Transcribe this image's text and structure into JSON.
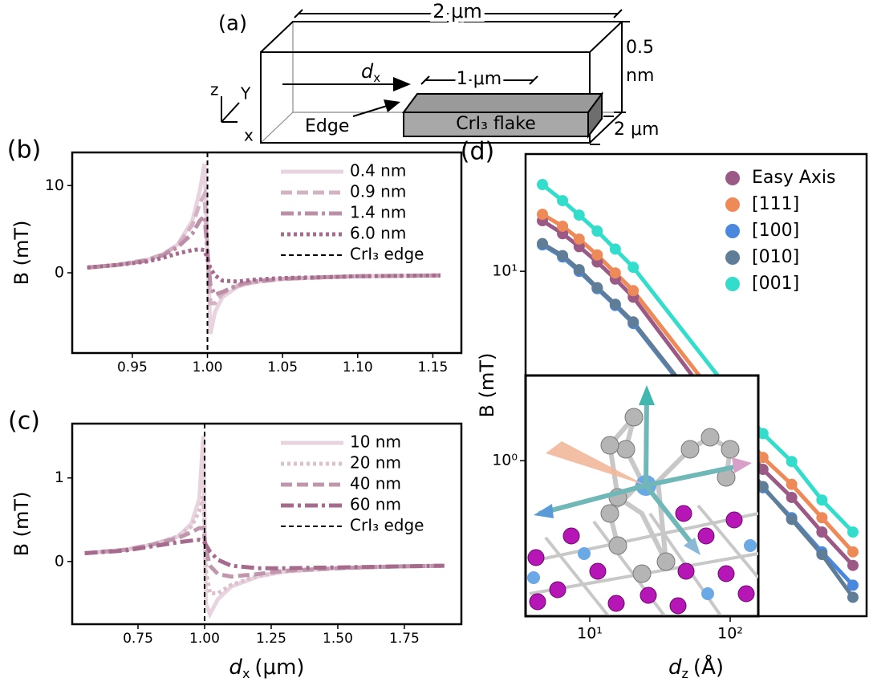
{
  "diagram": {
    "panel_label": "(a)",
    "length": "2 μm",
    "height": [
      "0.5",
      "nm"
    ],
    "dx": {
      "symbol": "d",
      "subscript": "x"
    },
    "flake_length": "1 μm",
    "edge": "Edge",
    "flake": "CrI₃ flake",
    "width": "2 μm",
    "axes": [
      "z",
      "Y",
      "x"
    ]
  },
  "chart_data": [
    {
      "type": "line",
      "panel_label": "(b)",
      "y_label": "B (mT)",
      "x": [
        0.92,
        0.94,
        0.96,
        0.97,
        0.98,
        0.99,
        0.995,
        0.998,
        1.002,
        1.005,
        1.01,
        1.02,
        1.03,
        1.05,
        1.08,
        1.1,
        1.155
      ],
      "xlim": [
        0.91,
        1.169
      ],
      "xticks": [
        0.95,
        {
          "value": 1.0,
          "label": "1.00"
        },
        1.05,
        {
          "value": 1.1,
          "label": "1.10"
        },
        1.15
      ],
      "ylim": [
        -9.2,
        13.8
      ],
      "yticks": [
        0,
        10
      ],
      "series": [
        {
          "name": "0.4 nm",
          "color": "#e8d4de",
          "dash": "solid",
          "values": [
            0.6,
            0.9,
            1.5,
            2.1,
            3.2,
            6,
            9.5,
            12.5,
            -7,
            -4.5,
            -2.8,
            -1.6,
            -1.1,
            -0.7,
            -0.5,
            -0.4,
            -0.3
          ]
        },
        {
          "name": "0.9 nm",
          "color": "#d3b3c3",
          "dash": "dashed",
          "values": [
            0.6,
            0.9,
            1.5,
            2.1,
            3.1,
            5.5,
            8,
            9,
            -3.5,
            -3.5,
            -2.4,
            -1.5,
            -1.1,
            -0.7,
            -0.5,
            -0.4,
            -0.3
          ]
        },
        {
          "name": "1.4 nm",
          "color": "#bc8ea8",
          "dash": "dashdot",
          "values": [
            0.6,
            0.9,
            1.4,
            2,
            2.9,
            4.5,
            6,
            6.5,
            -1.5,
            -2.5,
            -2.2,
            -1.4,
            -1,
            -0.7,
            -0.5,
            -0.4,
            -0.3
          ]
        },
        {
          "name": "6.0 nm",
          "color": "#a56a8c",
          "dash": "dotted",
          "values": [
            0.6,
            0.9,
            1.3,
            1.7,
            2.2,
            2.6,
            2.7,
            2.6,
            0.5,
            -0.3,
            -0.9,
            -1,
            -0.8,
            -0.6,
            -0.5,
            -0.4,
            -0.3
          ]
        }
      ],
      "vline": {
        "name": "CrI₃ edge",
        "x": 1.0,
        "color": "#000000"
      },
      "legend": "upper right"
    },
    {
      "type": "line",
      "panel_label": "(c)",
      "y_label": "B (mT)",
      "x_label": {
        "symbol": "d",
        "subscript": "x",
        "unit": "(μm)"
      },
      "x": [
        0.55,
        0.7,
        0.8,
        0.9,
        0.95,
        0.98,
        0.995,
        1.005,
        1.02,
        1.05,
        1.1,
        1.2,
        1.3,
        1.5,
        1.7,
        1.9
      ],
      "xlim": [
        0.503,
        1.964
      ],
      "xticks": [
        0.75,
        {
          "value": 1.0,
          "label": "1.00"
        },
        1.25,
        {
          "value": 1.5,
          "label": "1.50"
        },
        1.75
      ],
      "ylim": [
        -0.75,
        1.65
      ],
      "yticks": [
        0,
        1
      ],
      "series": [
        {
          "name": "10 nm",
          "color": "#e8d4de",
          "dash": "solid",
          "values": [
            0.1,
            0.14,
            0.2,
            0.3,
            0.45,
            0.75,
            1.5,
            -0.5,
            -0.63,
            -0.45,
            -0.3,
            -0.18,
            -0.12,
            -0.08,
            -0.06,
            -0.05
          ]
        },
        {
          "name": "20 nm",
          "color": "#dcc0ce",
          "dash": "dotted",
          "values": [
            0.1,
            0.14,
            0.2,
            0.3,
            0.42,
            0.6,
            0.78,
            -0.1,
            -0.38,
            -0.38,
            -0.28,
            -0.17,
            -0.12,
            -0.08,
            -0.06,
            -0.05
          ]
        },
        {
          "name": "40 nm",
          "color": "#c096ad",
          "dash": "dashed",
          "values": [
            0.1,
            0.14,
            0.2,
            0.28,
            0.35,
            0.4,
            0.4,
            0.15,
            -0.05,
            -0.15,
            -0.18,
            -0.15,
            -0.11,
            -0.08,
            -0.06,
            -0.05
          ]
        },
        {
          "name": "60 nm",
          "color": "#a56a8c",
          "dash": "dashdot",
          "values": [
            0.1,
            0.13,
            0.18,
            0.23,
            0.25,
            0.26,
            0.25,
            0.2,
            0.12,
            0.02,
            -0.05,
            -0.08,
            -0.08,
            -0.07,
            -0.06,
            -0.05
          ]
        }
      ],
      "vline": {
        "name": "CrI₃ edge",
        "x": 1.0,
        "color": "#000000"
      },
      "legend": "upper right"
    },
    {
      "type": "logline",
      "panel_label": "(d)",
      "y_label": "B (mT)",
      "x_label": {
        "symbol": "d",
        "subscript": "z",
        "unit": "(Å)"
      },
      "x": [
        4.6,
        6.4,
        8.4,
        11.3,
        15.2,
        20.4,
        171,
        274,
        450,
        748
      ],
      "xlim": [
        3.49,
        936
      ],
      "xticks": [
        {
          "value": 10,
          "label": "10¹"
        },
        {
          "value": 100,
          "label": "10²"
        }
      ],
      "ylim": [
        0.151,
        41.6
      ],
      "yticks": [
        {
          "value": 1,
          "label": "10⁰"
        },
        {
          "value": 10,
          "label": "10¹"
        }
      ],
      "series": [
        {
          "name": "Easy Axis",
          "color": "#9b5a85",
          "values": [
            18.5,
            15.8,
            13.5,
            11.2,
            9.1,
            7.3,
            0.9,
            0.64,
            0.42,
            0.28
          ]
        },
        {
          "name": "[111]",
          "color": "#ee8a58",
          "values": [
            20.0,
            17.3,
            14.8,
            12.2,
            9.8,
            7.9,
            1.04,
            0.75,
            0.5,
            0.33
          ]
        },
        {
          "name": "[100]",
          "color": "#4a88dd",
          "values": [
            13.8,
            11.9,
            10,
            8.1,
            6.6,
            5.3,
            0.72,
            0.5,
            0.33,
            0.22
          ]
        },
        {
          "name": "[010]",
          "color": "#5f7d96",
          "values": [
            14.0,
            12.1,
            10.2,
            8.2,
            6.7,
            5.4,
            0.73,
            0.49,
            0.32,
            0.19
          ]
        },
        {
          "name": "[001]",
          "color": "#33ddcc",
          "values": [
            28.7,
            23.6,
            19.8,
            16.3,
            13.1,
            10.5,
            1.39,
            0.99,
            0.62,
            0.42
          ]
        }
      ],
      "legend": "upper right"
    }
  ]
}
